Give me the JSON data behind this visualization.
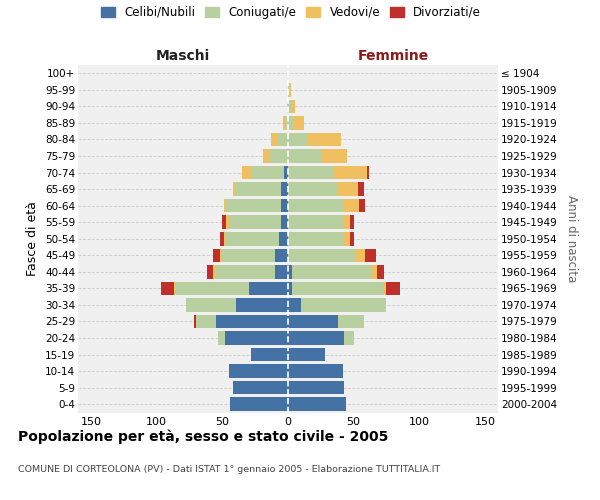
{
  "age_groups": [
    "0-4",
    "5-9",
    "10-14",
    "15-19",
    "20-24",
    "25-29",
    "30-34",
    "35-39",
    "40-44",
    "45-49",
    "50-54",
    "55-59",
    "60-64",
    "65-69",
    "70-74",
    "75-79",
    "80-84",
    "85-89",
    "90-94",
    "95-99",
    "100+"
  ],
  "birth_years": [
    "2000-2004",
    "1995-1999",
    "1990-1994",
    "1985-1989",
    "1980-1984",
    "1975-1979",
    "1970-1974",
    "1965-1969",
    "1960-1964",
    "1955-1959",
    "1950-1954",
    "1945-1949",
    "1940-1944",
    "1935-1939",
    "1930-1934",
    "1925-1929",
    "1920-1924",
    "1915-1919",
    "1910-1914",
    "1905-1909",
    "≤ 1904"
  ],
  "males": {
    "celibi": [
      44,
      42,
      45,
      28,
      48,
      55,
      40,
      30,
      10,
      10,
      7,
      5,
      5,
      5,
      3,
      0,
      0,
      0,
      0,
      0,
      0
    ],
    "coniugati": [
      0,
      0,
      0,
      0,
      5,
      15,
      38,
      55,
      45,
      40,
      40,
      40,
      42,
      35,
      25,
      14,
      8,
      2,
      1,
      0,
      0
    ],
    "vedovi": [
      0,
      0,
      0,
      0,
      0,
      0,
      0,
      2,
      2,
      2,
      2,
      2,
      2,
      2,
      7,
      5,
      5,
      2,
      0,
      0,
      0
    ],
    "divorziati": [
      0,
      0,
      0,
      0,
      0,
      2,
      0,
      10,
      5,
      5,
      3,
      3,
      0,
      0,
      0,
      0,
      0,
      0,
      0,
      0,
      0
    ]
  },
  "females": {
    "nubili": [
      44,
      43,
      42,
      28,
      43,
      38,
      10,
      3,
      3,
      0,
      0,
      0,
      0,
      0,
      0,
      0,
      0,
      0,
      0,
      0,
      0
    ],
    "coniugate": [
      0,
      0,
      0,
      0,
      7,
      20,
      65,
      70,
      60,
      52,
      42,
      42,
      42,
      38,
      35,
      25,
      15,
      4,
      2,
      1,
      0
    ],
    "vedove": [
      0,
      0,
      0,
      0,
      0,
      0,
      0,
      2,
      5,
      7,
      5,
      5,
      12,
      15,
      25,
      20,
      25,
      8,
      3,
      1,
      0
    ],
    "divorziate": [
      0,
      0,
      0,
      0,
      0,
      0,
      0,
      10,
      5,
      8,
      3,
      3,
      5,
      5,
      2,
      0,
      0,
      0,
      0,
      0,
      0
    ]
  },
  "colors": {
    "celibi": "#4472a4",
    "coniugati": "#b8cfa0",
    "vedovi": "#f0c060",
    "divorziati": "#c0302a"
  },
  "xlim": 160,
  "title": "Popolazione per età, sesso e stato civile - 2005",
  "subtitle": "COMUNE DI CORTEOLONA (PV) - Dati ISTAT 1° gennaio 2005 - Elaborazione TUTTITALIA.IT",
  "ylabel_left": "Fasce di età",
  "ylabel_right": "Anni di nascita",
  "xlabel_maschi": "Maschi",
  "xlabel_femmine": "Femmine",
  "legend_labels": [
    "Celibi/Nubili",
    "Coniugati/e",
    "Vedovi/e",
    "Divorziati/e"
  ],
  "bg_color": "#f0f0f0",
  "grid_color": "#cccccc"
}
